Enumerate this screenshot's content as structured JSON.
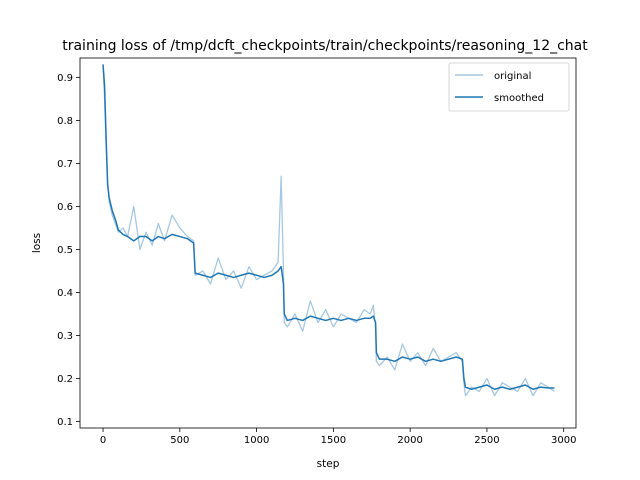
{
  "chart_data": {
    "type": "line",
    "title": "training loss of /tmp/dcft_checkpoints/train/checkpoints/reasoning_12_chat",
    "xlabel": "step",
    "ylabel": "loss",
    "xlim": [
      -150,
      3080
    ],
    "ylim": [
      0.085,
      0.945
    ],
    "xticks": [
      0,
      500,
      1000,
      1500,
      2000,
      2500,
      3000
    ],
    "yticks": [
      0.1,
      0.2,
      0.3,
      0.4,
      0.5,
      0.6,
      0.7,
      0.8,
      0.9
    ],
    "grid": false,
    "legend_position": "top-right",
    "colors": {
      "original": "#a6c8e2",
      "smoothed": "#1f77b4"
    },
    "series": [
      {
        "name": "original",
        "x": [
          0,
          10,
          20,
          30,
          40,
          60,
          80,
          100,
          130,
          160,
          200,
          240,
          280,
          320,
          360,
          400,
          450,
          500,
          550,
          590,
          600,
          650,
          700,
          750,
          800,
          850,
          900,
          950,
          1000,
          1050,
          1100,
          1140,
          1160,
          1175,
          1180,
          1200,
          1250,
          1300,
          1350,
          1400,
          1450,
          1500,
          1550,
          1600,
          1650,
          1700,
          1740,
          1760,
          1775,
          1780,
          1800,
          1850,
          1900,
          1950,
          2000,
          2050,
          2100,
          2150,
          2200,
          2250,
          2300,
          2340,
          2350,
          2360,
          2400,
          2450,
          2500,
          2550,
          2600,
          2650,
          2700,
          2750,
          2800,
          2850,
          2900,
          2940
        ],
        "y": [
          0.93,
          0.85,
          0.74,
          0.66,
          0.61,
          0.58,
          0.56,
          0.54,
          0.55,
          0.53,
          0.6,
          0.5,
          0.54,
          0.51,
          0.56,
          0.52,
          0.58,
          0.55,
          0.53,
          0.52,
          0.44,
          0.45,
          0.42,
          0.48,
          0.43,
          0.45,
          0.41,
          0.46,
          0.43,
          0.44,
          0.45,
          0.47,
          0.67,
          0.45,
          0.33,
          0.32,
          0.35,
          0.31,
          0.38,
          0.33,
          0.36,
          0.32,
          0.35,
          0.34,
          0.33,
          0.36,
          0.35,
          0.37,
          0.32,
          0.24,
          0.23,
          0.25,
          0.22,
          0.28,
          0.24,
          0.26,
          0.23,
          0.27,
          0.24,
          0.25,
          0.26,
          0.24,
          0.19,
          0.16,
          0.18,
          0.17,
          0.2,
          0.16,
          0.19,
          0.18,
          0.17,
          0.2,
          0.16,
          0.19,
          0.18,
          0.17
        ]
      },
      {
        "name": "smoothed",
        "x": [
          0,
          10,
          20,
          30,
          40,
          60,
          80,
          100,
          130,
          160,
          200,
          240,
          280,
          320,
          360,
          400,
          450,
          500,
          550,
          590,
          600,
          650,
          700,
          750,
          800,
          850,
          900,
          950,
          1000,
          1050,
          1100,
          1140,
          1160,
          1175,
          1180,
          1200,
          1250,
          1300,
          1350,
          1400,
          1450,
          1500,
          1550,
          1600,
          1650,
          1700,
          1740,
          1760,
          1775,
          1780,
          1800,
          1850,
          1900,
          1950,
          2000,
          2050,
          2100,
          2150,
          2200,
          2250,
          2300,
          2340,
          2350,
          2360,
          2400,
          2450,
          2500,
          2550,
          2600,
          2650,
          2700,
          2750,
          2800,
          2850,
          2900,
          2940
        ],
        "y": [
          0.93,
          0.88,
          0.76,
          0.65,
          0.62,
          0.59,
          0.57,
          0.545,
          0.535,
          0.53,
          0.52,
          0.53,
          0.53,
          0.52,
          0.53,
          0.525,
          0.535,
          0.53,
          0.525,
          0.515,
          0.445,
          0.44,
          0.435,
          0.445,
          0.44,
          0.435,
          0.44,
          0.445,
          0.44,
          0.435,
          0.44,
          0.45,
          0.46,
          0.42,
          0.35,
          0.335,
          0.34,
          0.335,
          0.345,
          0.34,
          0.335,
          0.34,
          0.335,
          0.34,
          0.335,
          0.34,
          0.34,
          0.345,
          0.33,
          0.26,
          0.245,
          0.245,
          0.24,
          0.25,
          0.245,
          0.25,
          0.24,
          0.245,
          0.24,
          0.245,
          0.25,
          0.245,
          0.2,
          0.18,
          0.175,
          0.18,
          0.185,
          0.175,
          0.18,
          0.175,
          0.18,
          0.185,
          0.175,
          0.18,
          0.178,
          0.178
        ]
      }
    ]
  }
}
